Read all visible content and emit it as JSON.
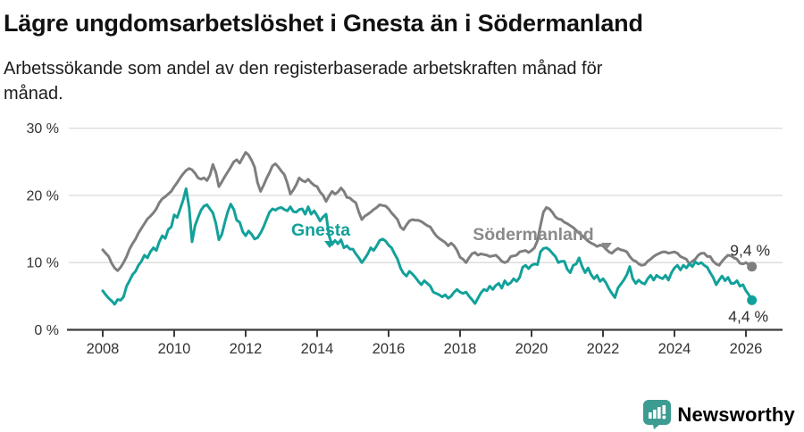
{
  "header": {
    "title": "Lägre ungdomsarbetslöshet i Gnesta än i Södermanland",
    "subtitle": "Arbetssökande som andel av den registerbaserade arbetskraften månad för månad."
  },
  "footer": {
    "brand": "Newsworthy",
    "logo_icon": "speech-bubble-with-bar-chart-and-exclamation"
  },
  "colors": {
    "gnesta": "#12A19A",
    "sodermanland": "#7E7E7E",
    "sodermanland_label": "#8A8A8A",
    "grid": "#DADADA",
    "axis": "#3C3C3C",
    "tick_text": "#333333",
    "end_label": "#303030",
    "title_text": "#111111",
    "logo": "#3D9C92"
  },
  "chart_data": {
    "type": "line",
    "title": "Lägre ungdomsarbetslöshet i Gnesta än i Södermanland",
    "subtitle": "Arbetssökande som andel av den registerbaserade arbetskraften månad för månad.",
    "unit": "%",
    "frequency": "monthly",
    "x_range": {
      "start_year": 2008,
      "start_month": 1,
      "end_year": 2026,
      "end_month": 3
    },
    "x_ticks": [
      2008,
      2010,
      2012,
      2014,
      2016,
      2018,
      2020,
      2022,
      2024,
      2026
    ],
    "y_ticks": [
      {
        "value": 0,
        "label": "0 %"
      },
      {
        "value": 10,
        "label": "10 %"
      },
      {
        "value": 20,
        "label": "20 %"
      },
      {
        "value": 30,
        "label": "30 %"
      }
    ],
    "ylim": [
      0,
      30
    ],
    "grid": "horizontal",
    "legend": "inline-labels",
    "series": [
      {
        "key": "sodermanland",
        "name": "Södermanland",
        "color": "#7E7E7E",
        "label_color": "#8A8A8A",
        "end_label": "9,4 %",
        "end_value": 9.4,
        "values": [
          11.9,
          11.4,
          10.9,
          9.9,
          9.2,
          8.8,
          9.3,
          10.0,
          10.9,
          12.0,
          12.8,
          13.5,
          14.4,
          15.1,
          15.8,
          16.5,
          16.9,
          17.4,
          18.0,
          18.9,
          19.5,
          19.8,
          20.2,
          20.6,
          21.3,
          21.9,
          22.6,
          23.2,
          23.7,
          24.0,
          23.8,
          23.3,
          22.6,
          22.4,
          22.6,
          22.2,
          23.0,
          24.6,
          23.4,
          21.3,
          22.0,
          22.8,
          23.5,
          24.2,
          25.0,
          25.3,
          24.8,
          25.6,
          26.4,
          26.0,
          25.2,
          24.2,
          21.9,
          20.6,
          21.5,
          22.5,
          23.4,
          24.4,
          24.7,
          24.2,
          23.6,
          23.1,
          21.8,
          20.2,
          20.8,
          21.6,
          22.6,
          22.2,
          22.0,
          22.4,
          21.9,
          21.5,
          21.3,
          20.5,
          20.0,
          19.1,
          19.9,
          20.6,
          20.2,
          20.5,
          21.1,
          20.6,
          19.7,
          19.6,
          19.2,
          18.9,
          17.5,
          16.4,
          16.9,
          17.2,
          17.5,
          17.9,
          18.2,
          18.6,
          18.5,
          18.4,
          18.0,
          17.4,
          16.9,
          16.4,
          15.3,
          14.9,
          15.6,
          16.2,
          16.4,
          16.3,
          16.3,
          16.1,
          15.8,
          15.5,
          15.3,
          14.6,
          14.0,
          13.6,
          13.3,
          13.0,
          12.5,
          12.9,
          12.5,
          11.8,
          10.8,
          10.5,
          10.0,
          10.7,
          11.3,
          11.5,
          11.1,
          11.3,
          11.2,
          11.1,
          10.9,
          11.0,
          11.1,
          10.7,
          10.2,
          10.0,
          10.2,
          10.9,
          11.0,
          11.1,
          11.6,
          11.7,
          11.8,
          11.5,
          11.8,
          12.2,
          13.3,
          15.5,
          17.5,
          18.2,
          18.0,
          17.5,
          16.8,
          16.5,
          16.4,
          16.0,
          15.8,
          15.5,
          15.2,
          14.8,
          14.4,
          14.0,
          13.6,
          13.2,
          12.9,
          12.7,
          12.4,
          12.6,
          12.5,
          12.0,
          11.6,
          11.4,
          11.8,
          12.1,
          11.9,
          11.8,
          11.6,
          10.9,
          10.4,
          10.2,
          9.8,
          9.6,
          9.7,
          10.2,
          10.5,
          10.9,
          11.2,
          11.4,
          11.6,
          11.6,
          11.4,
          11.5,
          11.6,
          11.4,
          10.9,
          10.7,
          10.5,
          9.8,
          10.2,
          10.5,
          11.1,
          11.4,
          11.4,
          10.9,
          10.9,
          10.2,
          9.8,
          9.6,
          10.2,
          10.7,
          11.1,
          11.0,
          10.7,
          10.5,
          9.9,
          9.8,
          10.0,
          9.7,
          9.4
        ]
      },
      {
        "key": "gnesta",
        "name": "Gnesta",
        "color": "#12A19A",
        "label_color": "#12A19A",
        "end_label": "4,4 %",
        "end_value": 4.4,
        "values": [
          5.8,
          5.2,
          4.7,
          4.3,
          3.8,
          4.5,
          4.4,
          4.9,
          6.5,
          7.3,
          8.2,
          8.7,
          9.6,
          10.2,
          11.1,
          10.7,
          11.6,
          12.2,
          11.8,
          13.1,
          14.0,
          13.6,
          14.9,
          15.3,
          17.1,
          16.7,
          18.0,
          19.3,
          21.0,
          18.2,
          13.1,
          15.5,
          16.7,
          17.8,
          18.4,
          18.6,
          18.0,
          17.4,
          15.8,
          13.4,
          14.2,
          16.0,
          17.6,
          18.7,
          17.9,
          16.3,
          16.0,
          14.6,
          14.0,
          14.7,
          14.2,
          13.5,
          13.7,
          14.4,
          15.3,
          16.4,
          17.5,
          18.0,
          17.8,
          18.1,
          18.2,
          17.9,
          17.7,
          18.3,
          17.6,
          17.5,
          17.9,
          18.0,
          17.2,
          18.3,
          17.2,
          17.7,
          17.0,
          16.2,
          16.8,
          17.2,
          14.0,
          12.7,
          13.3,
          12.8,
          13.4,
          12.2,
          12.5,
          12.0,
          12.0,
          11.3,
          10.7,
          10.0,
          10.6,
          11.3,
          12.2,
          11.8,
          12.5,
          13.3,
          13.5,
          13.2,
          12.6,
          12.2,
          11.3,
          10.5,
          9.2,
          8.4,
          8.0,
          8.7,
          8.3,
          7.8,
          7.2,
          6.7,
          7.3,
          6.9,
          6.5,
          5.6,
          5.4,
          5.2,
          4.9,
          5.2,
          4.7,
          5.0,
          5.6,
          6.0,
          5.6,
          5.4,
          5.6,
          5.0,
          4.5,
          3.9,
          4.7,
          5.5,
          6.0,
          5.8,
          6.5,
          6.0,
          6.6,
          6.9,
          6.2,
          7.3,
          6.7,
          7.0,
          7.6,
          7.2,
          7.8,
          9.3,
          9.6,
          9.1,
          9.6,
          9.8,
          9.7,
          11.6,
          12.1,
          12.2,
          11.9,
          11.4,
          10.9,
          10.0,
          10.2,
          10.2,
          9.0,
          8.5,
          9.6,
          9.8,
          10.7,
          9.4,
          8.5,
          9.2,
          8.2,
          7.6,
          8.1,
          7.2,
          7.6,
          7.0,
          6.1,
          5.4,
          4.8,
          6.2,
          6.8,
          7.4,
          8.2,
          9.4,
          7.6,
          6.9,
          7.4,
          7.0,
          6.8,
          7.6,
          8.1,
          7.4,
          8.1,
          7.8,
          7.6,
          8.1,
          7.4,
          8.5,
          9.2,
          9.6,
          8.9,
          9.6,
          9.2,
          9.8,
          9.4,
          10.1,
          9.8,
          10.0,
          9.6,
          9.3,
          8.5,
          7.8,
          6.7,
          7.4,
          8.0,
          7.3,
          7.8,
          6.9,
          6.9,
          7.3,
          6.5,
          6.7,
          5.8,
          5.2,
          4.4
        ]
      }
    ]
  }
}
